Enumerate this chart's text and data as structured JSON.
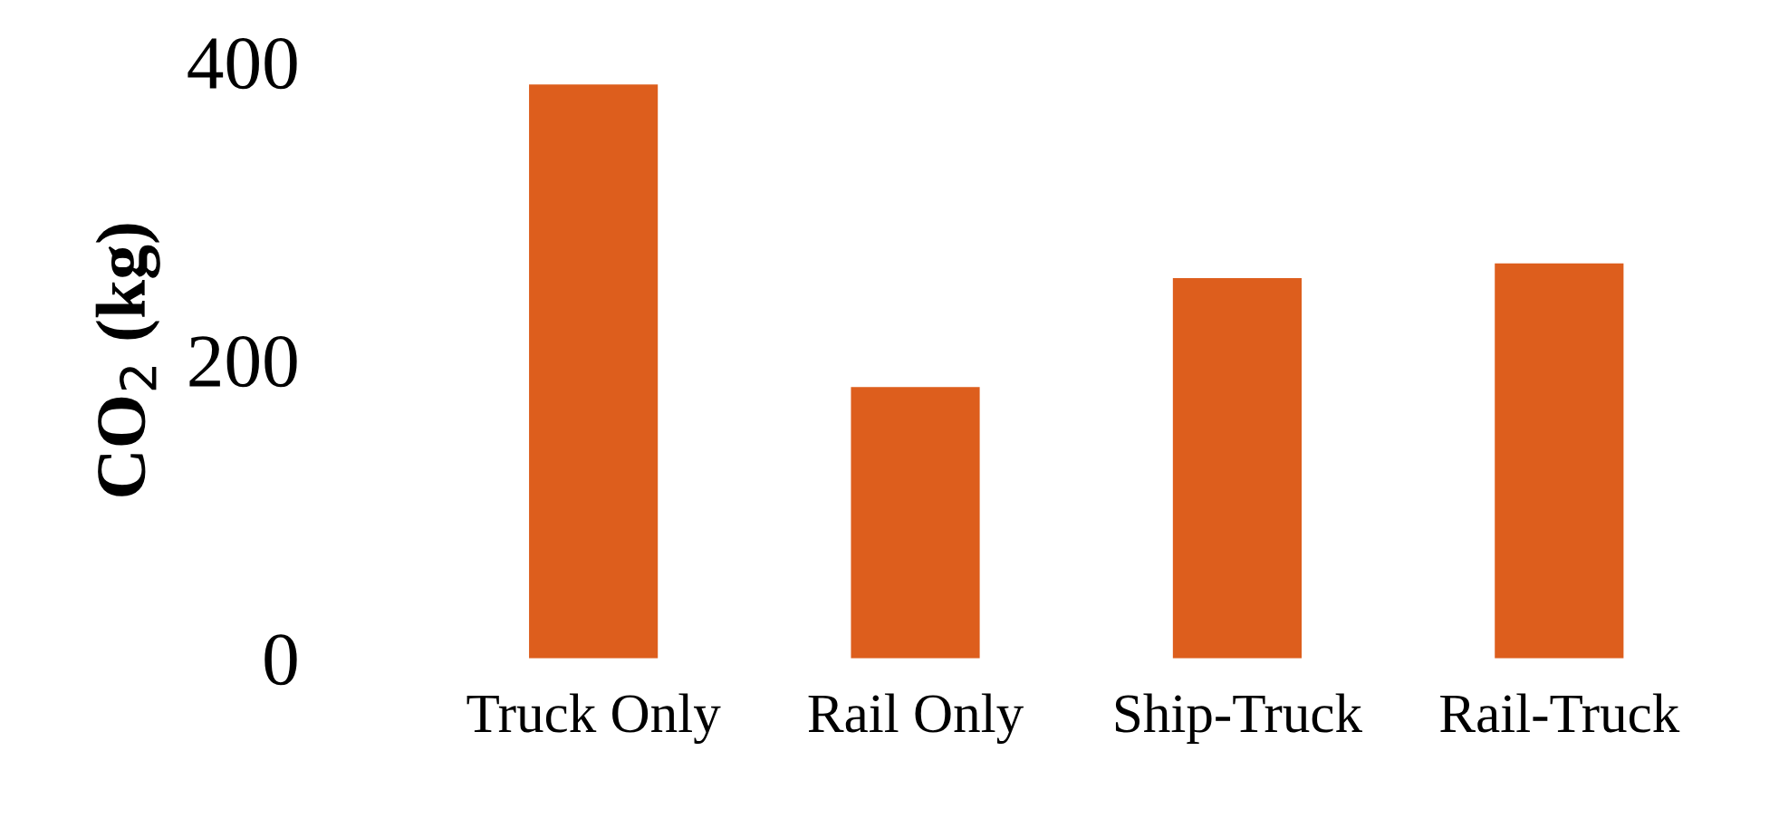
{
  "chart_data": {
    "type": "bar",
    "ylabel": "CO$_{2}$ (kg)",
    "categories": [
      "Truck Only",
      "Rail Only",
      "Ship-Truck",
      "Rail-Truck"
    ],
    "values": [
      385,
      182,
      255,
      265
    ],
    "color": "#dd5e1d",
    "ylim": [
      0,
      400
    ],
    "yticks": [
      0,
      200,
      400
    ],
    "grid": false
  }
}
